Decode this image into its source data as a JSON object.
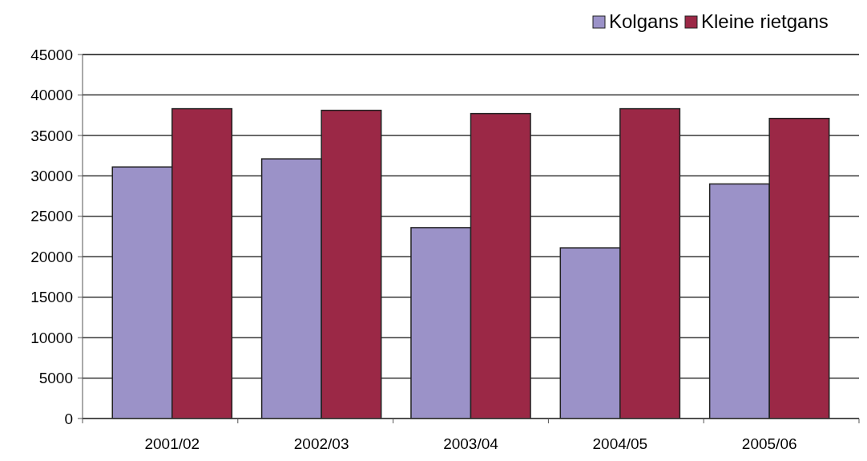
{
  "chart_data": {
    "type": "bar",
    "categories": [
      "2001/02",
      "2002/03",
      "2003/04",
      "2004/05",
      "2005/06"
    ],
    "series": [
      {
        "name": "Kolgans",
        "color": "#9b92c8",
        "values": [
          31100,
          32100,
          23600,
          21100,
          29000
        ]
      },
      {
        "name": "Kleine rietgans",
        "color": "#9b2846",
        "values": [
          38300,
          38100,
          37700,
          38300,
          37100
        ]
      }
    ],
    "ylim": [
      0,
      45000
    ],
    "yticks": [
      0,
      5000,
      10000,
      15000,
      20000,
      25000,
      30000,
      35000,
      40000,
      45000
    ],
    "grid": "y",
    "legend": "top right"
  }
}
